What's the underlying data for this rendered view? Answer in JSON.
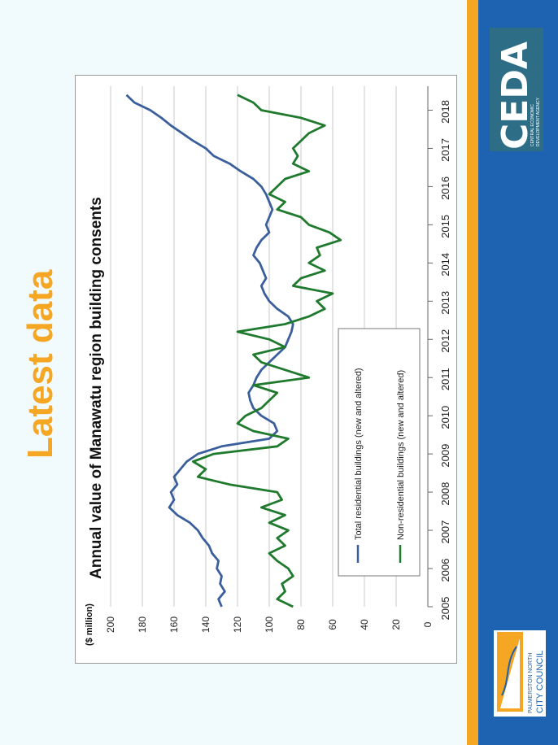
{
  "slide": {
    "heading": "Latest data",
    "heading_color": "#f5a623"
  },
  "logos": {
    "ceda_text": "CEDA",
    "ceda_subtext_1": "CENTRAL ECONOMIC",
    "ceda_subtext_2": "DEVELOPMENT AGENCY",
    "council_line_1": "PALMERSTON NORTH",
    "council_line_2": "CITY COUNCIL"
  },
  "colors": {
    "residential": "#3a5f9c",
    "non_residential": "#1f7a2e",
    "accent_orange": "#f5a623",
    "accent_blue": "#1e63b2"
  },
  "chart_data": {
    "type": "line",
    "title": "Annual value of Manawatu region building consents",
    "xlabel": "",
    "ylabel": "($ million)",
    "ylim": [
      0,
      200
    ],
    "yticks": [
      0,
      20,
      40,
      60,
      80,
      100,
      120,
      140,
      160,
      180,
      200
    ],
    "xticks": [
      "2005",
      "2006",
      "2007",
      "2008",
      "2009",
      "2010",
      "2011",
      "2012",
      "2013",
      "2014",
      "2015",
      "2016",
      "2017",
      "2018"
    ],
    "xlim": [
      2005,
      2018.5
    ],
    "grid": true,
    "legend_position": "bottom-right",
    "series": [
      {
        "name": "Total residential buildings (new and altered)",
        "x": [
          2005.0,
          2005.2,
          2005.4,
          2005.6,
          2005.8,
          2006.0,
          2006.2,
          2006.4,
          2006.6,
          2006.8,
          2007.0,
          2007.2,
          2007.4,
          2007.6,
          2007.8,
          2008.0,
          2008.2,
          2008.4,
          2008.6,
          2008.8,
          2009.0,
          2009.2,
          2009.4,
          2009.6,
          2009.8,
          2010.0,
          2010.2,
          2010.4,
          2010.6,
          2010.8,
          2011.0,
          2011.2,
          2011.4,
          2011.6,
          2011.8,
          2012.0,
          2012.2,
          2012.4,
          2012.6,
          2012.8,
          2013.0,
          2013.2,
          2013.4,
          2013.6,
          2013.8,
          2014.0,
          2014.2,
          2014.4,
          2014.6,
          2014.8,
          2015.0,
          2015.2,
          2015.4,
          2015.6,
          2015.8,
          2016.0,
          2016.2,
          2016.4,
          2016.6,
          2016.8,
          2017.0,
          2017.2,
          2017.4,
          2017.6,
          2017.8,
          2018.0,
          2018.2,
          2018.4
        ],
        "values": [
          130,
          132,
          128,
          131,
          130,
          133,
          132,
          136,
          138,
          142,
          145,
          150,
          158,
          163,
          160,
          162,
          158,
          160,
          156,
          152,
          145,
          130,
          100,
          95,
          97,
          105,
          110,
          112,
          113,
          110,
          108,
          105,
          100,
          95,
          90,
          88,
          86,
          85,
          88,
          95,
          100,
          103,
          105,
          102,
          104,
          106,
          110,
          108,
          105,
          100,
          102,
          100,
          98,
          100,
          102,
          105,
          110,
          118,
          125,
          135,
          140,
          148,
          155,
          162,
          168,
          175,
          185,
          190
        ]
      },
      {
        "name": "Non-residential buildings (new and altered)",
        "x": [
          2005.0,
          2005.2,
          2005.4,
          2005.6,
          2005.8,
          2006.0,
          2006.2,
          2006.4,
          2006.6,
          2006.8,
          2007.0,
          2007.2,
          2007.4,
          2007.6,
          2007.8,
          2008.0,
          2008.2,
          2008.4,
          2008.6,
          2008.8,
          2009.0,
          2009.2,
          2009.4,
          2009.6,
          2009.8,
          2010.0,
          2010.2,
          2010.4,
          2010.6,
          2010.8,
          2011.0,
          2011.2,
          2011.4,
          2011.6,
          2011.8,
          2012.0,
          2012.2,
          2012.4,
          2012.6,
          2012.8,
          2013.0,
          2013.2,
          2013.4,
          2013.6,
          2013.8,
          2014.0,
          2014.2,
          2014.4,
          2014.6,
          2014.8,
          2015.0,
          2015.2,
          2015.4,
          2015.6,
          2015.8,
          2016.0,
          2016.2,
          2016.4,
          2016.6,
          2016.8,
          2017.0,
          2017.2,
          2017.4,
          2017.6,
          2017.8,
          2018.0,
          2018.2,
          2018.4
        ],
        "values": [
          85,
          95,
          90,
          92,
          85,
          88,
          95,
          100,
          90,
          95,
          88,
          100,
          90,
          105,
          92,
          95,
          125,
          145,
          140,
          148,
          135,
          95,
          88,
          110,
          120,
          115,
          105,
          100,
          95,
          110,
          75,
          90,
          105,
          110,
          90,
          100,
          120,
          90,
          75,
          65,
          70,
          60,
          85,
          80,
          65,
          75,
          68,
          70,
          55,
          62,
          75,
          80,
          95,
          90,
          100,
          95,
          90,
          75,
          85,
          82,
          85,
          80,
          75,
          65,
          80,
          105,
          110,
          120
        ]
      }
    ]
  }
}
